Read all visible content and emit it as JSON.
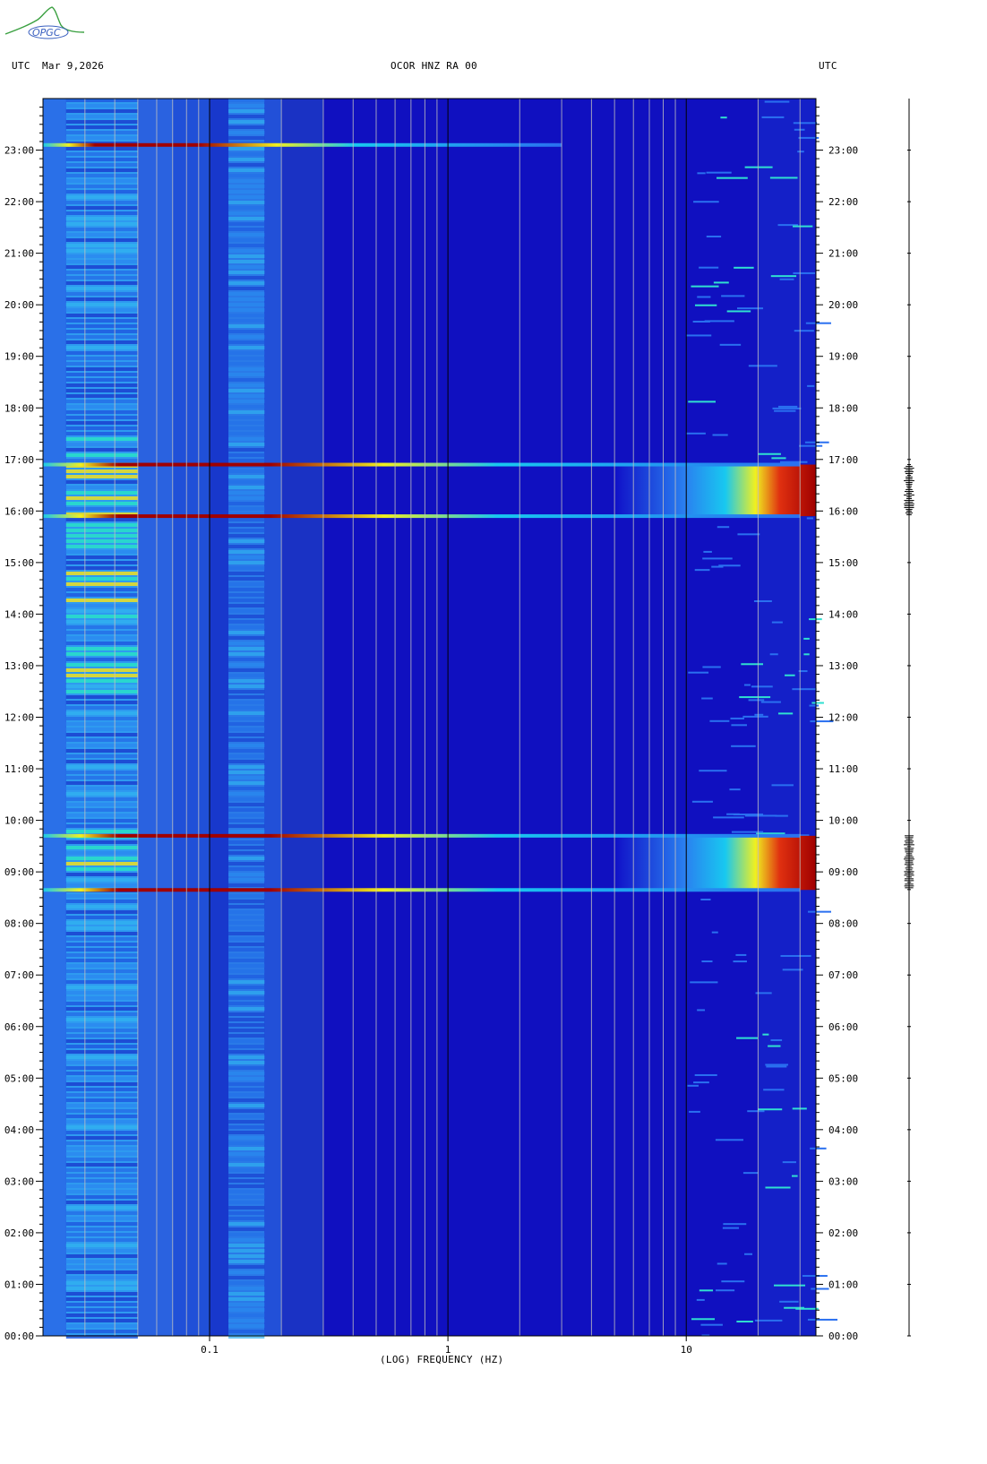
{
  "header": {
    "left_label": "UTC",
    "date": "Mar 9,2026",
    "title": "OCOR HNZ RA 00",
    "right_label": "UTC",
    "logo_text": "OPGC"
  },
  "colors": {
    "low": "#1010c8",
    "background_band": "#2f6be8",
    "mid": "#18c8f0",
    "high_yellow": "#f0f020",
    "max": "#a00000",
    "grid": "#c0c0c0",
    "major_grid": "#000000"
  },
  "chart_data": {
    "type": "heatmap",
    "title": "OCOR HNZ RA 00",
    "xlabel": "(LOG) FREQUENCY (HZ)",
    "ylabel": "UTC",
    "x_scale": "log",
    "xlim": [
      0.02,
      35
    ],
    "x_ticks": [
      {
        "value": 0.1,
        "label": "0.1"
      },
      {
        "value": 1,
        "label": "1"
      },
      {
        "value": 10,
        "label": "10"
      }
    ],
    "ylim_hours": [
      0,
      24
    ],
    "y_ticks": [
      "00:00",
      "01:00",
      "02:00",
      "03:00",
      "04:00",
      "05:00",
      "06:00",
      "07:00",
      "08:00",
      "09:00",
      "10:00",
      "11:00",
      "12:00",
      "13:00",
      "14:00",
      "15:00",
      "16:00",
      "17:00",
      "18:00",
      "19:00",
      "20:00",
      "21:00",
      "22:00",
      "23:00"
    ],
    "events": [
      {
        "time_hours": 23.1,
        "f_start": 0.02,
        "f_end": 3.0,
        "intensity": "strong",
        "peak_band": [
          0.07,
          1.8
        ]
      },
      {
        "time_hours": 16.9,
        "f_start": 0.02,
        "f_end": 30,
        "intensity": "strong",
        "peak_band": [
          0.025,
          0.1
        ]
      },
      {
        "time_hours": 15.9,
        "f_start": 0.02,
        "f_end": 30,
        "intensity": "strong",
        "peak_band": [
          0.025,
          0.1
        ]
      },
      {
        "time_hours": 9.7,
        "f_start": 0.02,
        "f_end": 30,
        "intensity": "strong",
        "peak_band": [
          0.025,
          0.1
        ]
      },
      {
        "time_hours": 8.65,
        "f_start": 0.02,
        "f_end": 30,
        "intensity": "strong",
        "peak_band": [
          0.025,
          0.1
        ]
      }
    ],
    "high_frequency_bursts": [
      {
        "t_start": 15.9,
        "t_end": 16.9,
        "f_start": 5,
        "f_end": 35,
        "level": "saturated"
      },
      {
        "t_start": 8.65,
        "t_end": 9.7,
        "f_start": 5,
        "f_end": 35,
        "level": "saturated"
      }
    ],
    "microseism_band": {
      "f_start": 0.02,
      "f_end": 0.2,
      "level": "elevated"
    }
  }
}
